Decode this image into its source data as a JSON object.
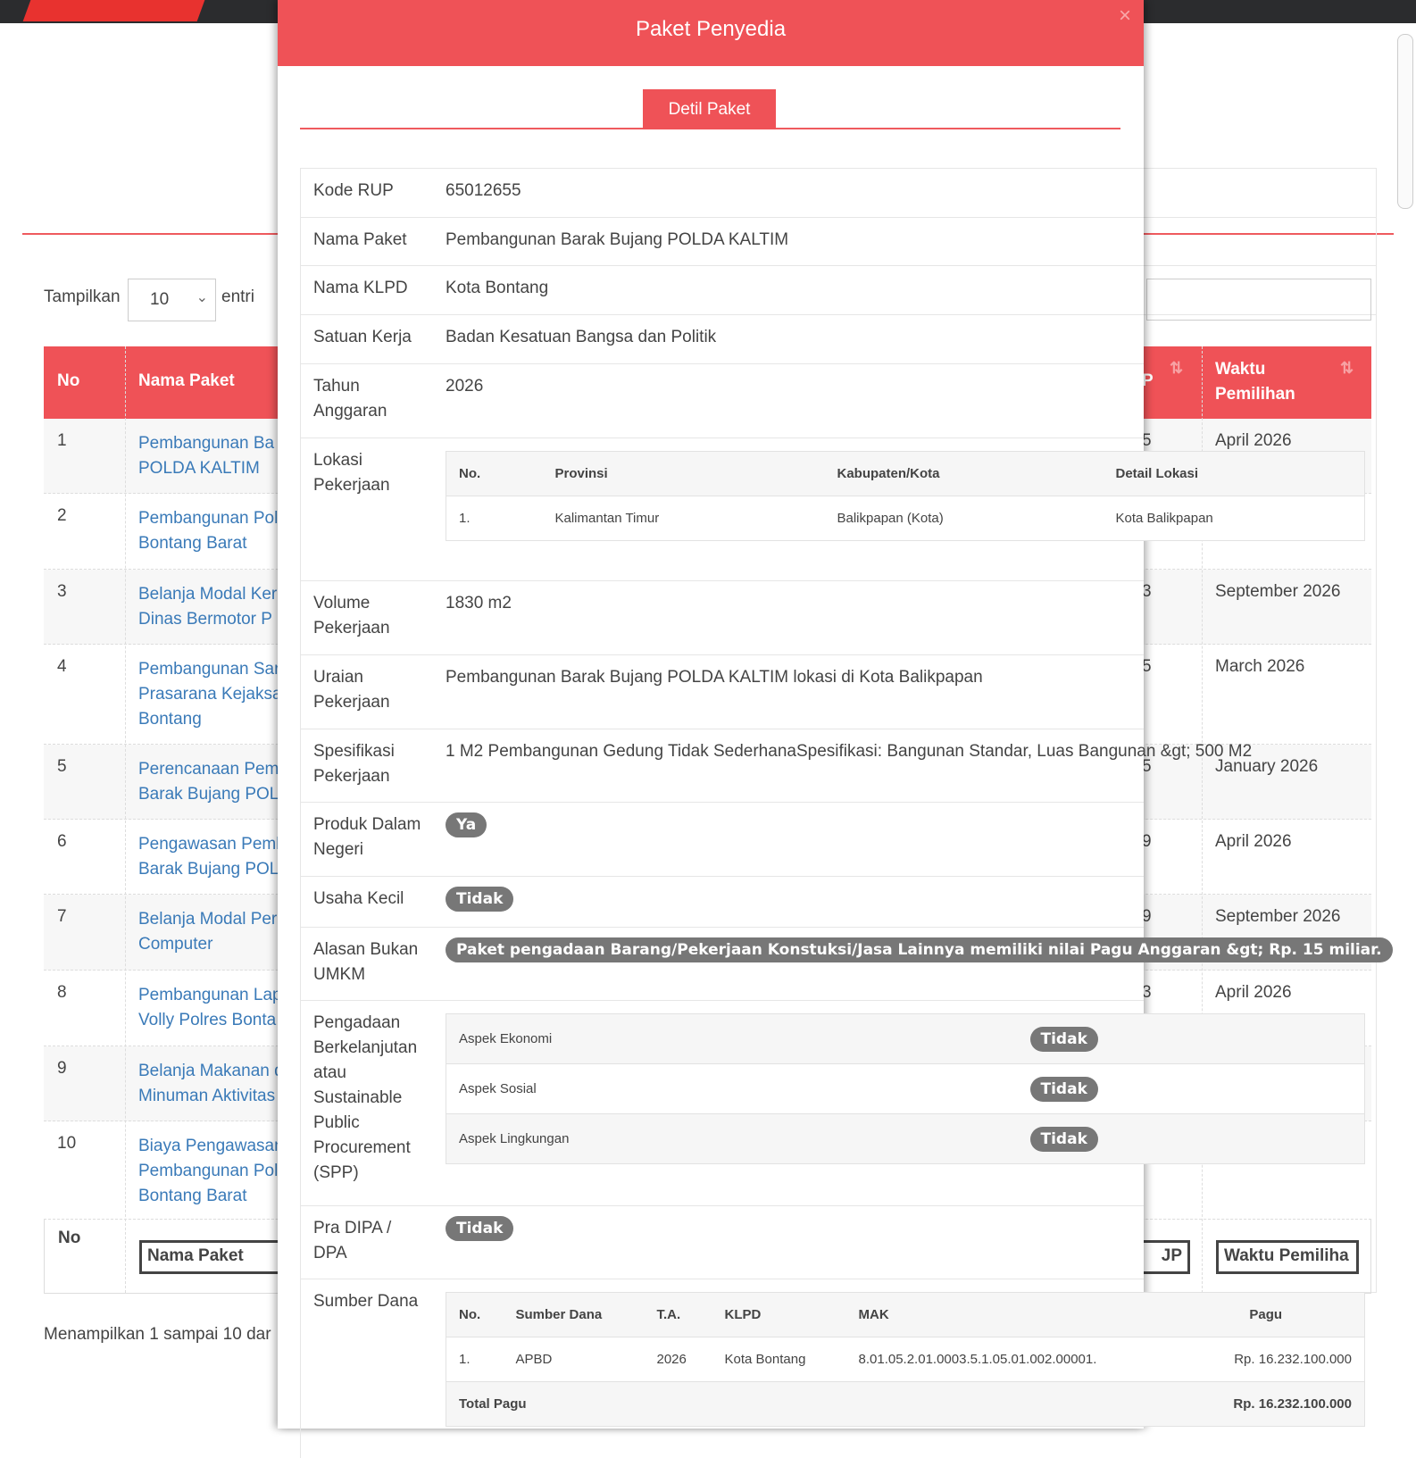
{
  "background": {
    "length_label": "Tampilkan",
    "length_value": "10",
    "entries_label": "entri",
    "headers": {
      "no": "No",
      "nama_paket": "Nama Paket",
      "partial_col": "P",
      "waktu": "Waktu Pemilihan"
    },
    "rows": [
      {
        "no": "1",
        "nama": "Pembangunan Ba\nPOLDA KALTIM",
        "partial": "5",
        "waktu": "April 2026"
      },
      {
        "no": "2",
        "nama": "Pembangunan Pol\nBontang Barat",
        "partial": "",
        "waktu": ""
      },
      {
        "no": "3",
        "nama": "Belanja Modal Ker\nDinas Bermotor P",
        "partial": "3",
        "waktu": "September 2026"
      },
      {
        "no": "4",
        "nama": "Pembangunan Sar\nPrasarana Kejaksa\nBontang",
        "partial": "5",
        "waktu": "March 2026"
      },
      {
        "no": "5",
        "nama": "Perencanaan Pem\nBarak Bujang POL",
        "partial": "5",
        "waktu": "January 2026"
      },
      {
        "no": "6",
        "nama": "Pengawasan Pemb\nBarak Bujang POL",
        "partial": "9",
        "waktu": "April 2026"
      },
      {
        "no": "7",
        "nama": "Belanja Modal Per\nComputer",
        "partial": "9",
        "waktu": "September 2026"
      },
      {
        "no": "8",
        "nama": "Pembangunan Lap\nVolly Polres Bonta",
        "partial": "3",
        "waktu": "April 2026"
      },
      {
        "no": "9",
        "nama": "Belanja Makanan d\nMinuman Aktivitas",
        "partial": "",
        "waktu": ""
      },
      {
        "no": "10",
        "nama": "Biaya Pengawasan\nPembangunan Pol\nBontang Barat",
        "partial": "",
        "waktu": ""
      }
    ],
    "footer_filters": {
      "no": "No",
      "nama_paket": "Nama Paket",
      "partial": "JP",
      "waktu": "Waktu Pemiliha"
    },
    "showing_text": "Menampilkan 1 sampai 10 dar"
  },
  "modal": {
    "title": "Paket Penyedia",
    "close": "×",
    "tab": "Detil Paket",
    "fields": {
      "kode_rup": {
        "label": "Kode RUP",
        "value": "65012655"
      },
      "nama_paket": {
        "label": "Nama Paket",
        "value": "Pembangunan Barak Bujang POLDA KALTIM"
      },
      "nama_klpd": {
        "label": "Nama KLPD",
        "value": "Kota Bontang"
      },
      "satuan_kerja": {
        "label": "Satuan Kerja",
        "value": "Badan Kesatuan Bangsa dan Politik"
      },
      "tahun": {
        "label": "Tahun Anggaran",
        "value": "2026"
      },
      "lokasi": {
        "label": "Lokasi Pekerjaan"
      },
      "volume": {
        "label": "Volume Pekerjaan",
        "value": "1830 m2"
      },
      "uraian": {
        "label": "Uraian Pekerjaan",
        "value": "Pembangunan Barak Bujang POLDA KALTIM lokasi di Kota Balikpapan"
      },
      "spesifikasi": {
        "label": "Spesifikasi Pekerjaan",
        "value": "1 M2 Pembangunan Gedung Tidak SederhanaSpesifikasi: Bangunan Standar, Luas Bangunan &gt; 500 M2"
      },
      "pdn": {
        "label": "Produk Dalam Negeri",
        "value": "Ya"
      },
      "usaha_kecil": {
        "label": "Usaha Kecil",
        "value": "Tidak"
      },
      "alasan": {
        "label": "Alasan Bukan UMKM",
        "value": "Paket pengadaan Barang/Pekerjaan Konstuksi/Jasa Lainnya memiliki nilai Pagu Anggaran &gt; Rp. 15 miliar."
      },
      "spp": {
        "label": "Pengadaan Berkelanjutan atau Sustainable Public Procurement (SPP)"
      },
      "pra_dipa": {
        "label": "Pra DIPA / DPA",
        "value": "Tidak"
      },
      "sumber_dana": {
        "label": "Sumber Dana"
      }
    },
    "lokasi_table": {
      "headers": [
        "No.",
        "Provinsi",
        "Kabupaten/Kota",
        "Detail Lokasi"
      ],
      "rows": [
        [
          "1.",
          "Kalimantan Timur",
          "Balikpapan (Kota)",
          "Kota Balikpapan"
        ]
      ]
    },
    "spp_table": [
      {
        "aspek": "Aspek Ekonomi",
        "value": "Tidak"
      },
      {
        "aspek": "Aspek Sosial",
        "value": "Tidak"
      },
      {
        "aspek": "Aspek Lingkungan",
        "value": "Tidak"
      }
    ],
    "dana_table": {
      "headers": [
        "No.",
        "Sumber Dana",
        "T.A.",
        "KLPD",
        "MAK",
        "Pagu"
      ],
      "rows": [
        [
          "1.",
          "APBD",
          "2026",
          "Kota Bontang",
          "8.01.05.2.01.0003.5.1.05.01.002.00001.",
          "Rp. 16.232.100.000"
        ]
      ],
      "total_label": "Total Pagu",
      "total_value": "Rp. 16.232.100.000"
    }
  },
  "colors": {
    "accent": "#ef5257",
    "link": "#3a7ab8",
    "badge": "#777777",
    "topbar": "#2b2c2e"
  }
}
